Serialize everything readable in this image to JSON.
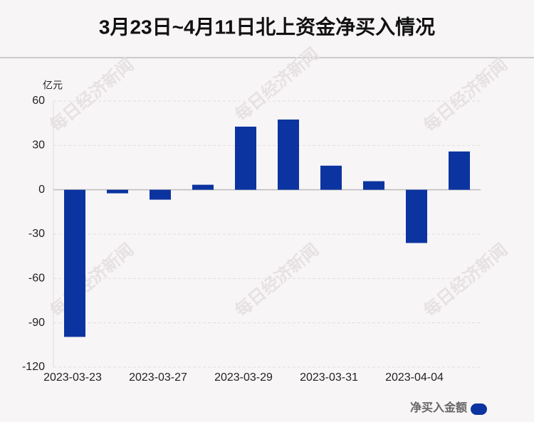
{
  "chart_data": {
    "type": "bar",
    "title": "3月23日~4月11日北上资金净买入情况",
    "y_label": "亿元",
    "watermark": "每日经济新闻",
    "categories": [
      "2023-03-23",
      null,
      "2023-03-27",
      null,
      "2023-03-29",
      null,
      "2023-03-31",
      null,
      "2023-04-04",
      null
    ],
    "series": [
      {
        "name": "净买入金额",
        "color": "#0c34a0",
        "values": [
          -99.5,
          -2.4,
          -6.7,
          3.4,
          42.7,
          47.5,
          16.3,
          5.8,
          -36,
          25.9
        ]
      }
    ],
    "ylim": [
      -120,
      60
    ],
    "yticks": [
      -120,
      -90,
      -60,
      -30,
      0,
      30,
      60
    ],
    "grid": true,
    "legend": "bottom-right"
  }
}
